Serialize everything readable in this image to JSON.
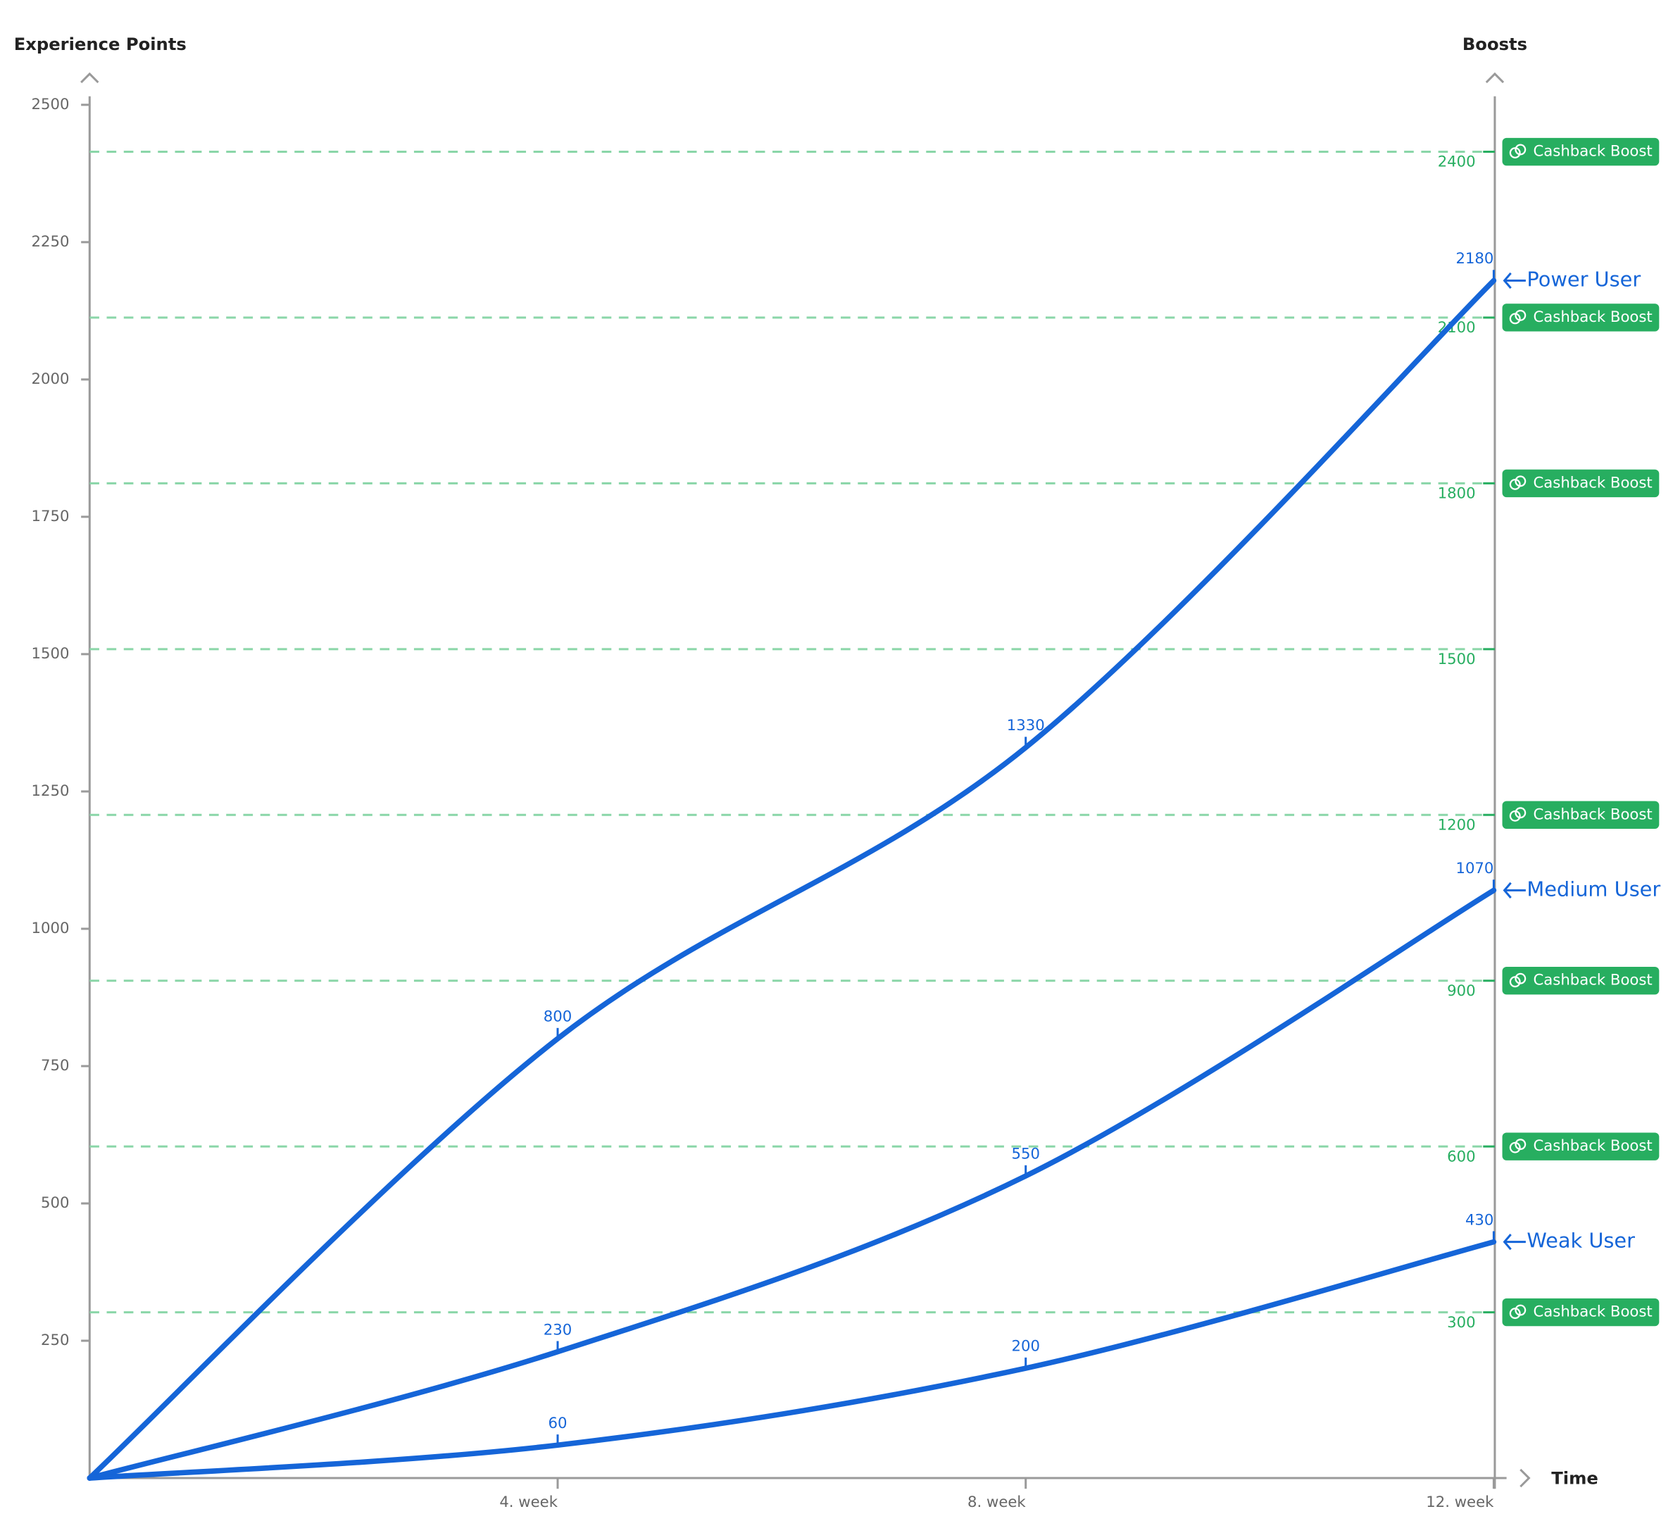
{
  "chart_data": {
    "type": "line",
    "ylabel": "Experience Points",
    "y2label": "Boosts",
    "xlabel": "Time",
    "x": [
      0,
      4,
      8,
      12
    ],
    "xlim": [
      0,
      12
    ],
    "xticks": [
      {
        "value": 4,
        "label": "4. week"
      },
      {
        "value": 8,
        "label": "8. week"
      },
      {
        "value": 12,
        "label": "12. week"
      }
    ],
    "ylim": [
      0,
      2500
    ],
    "yticks": [
      250,
      500,
      750,
      1000,
      1250,
      1500,
      1750,
      2000,
      2250,
      2500
    ],
    "y2lim": [
      0,
      2400
    ],
    "y2ticks": [
      300,
      600,
      900,
      1200,
      1500,
      1800,
      2100,
      2400
    ],
    "grid": true,
    "boosts": [
      {
        "value": 300,
        "label": "Cashback Boost"
      },
      {
        "value": 600,
        "label": "Cashback Boost"
      },
      {
        "value": 900,
        "label": "Cashback Boost"
      },
      {
        "value": 1200,
        "label": "Cashback Boost"
      },
      {
        "value": 1800,
        "label": "Cashback Boost"
      },
      {
        "value": 2100,
        "label": "Cashback Boost"
      },
      {
        "value": 2400,
        "label": "Cashback Boost"
      }
    ],
    "boost_color": "#27ae60",
    "series": [
      {
        "name": "Power User",
        "color": "#1565d8",
        "values": [
          0,
          800,
          1330,
          2180
        ]
      },
      {
        "name": "Medium User",
        "color": "#1565d8",
        "values": [
          0,
          230,
          550,
          1070
        ]
      },
      {
        "name": "Weak User",
        "color": "#1565d8",
        "values": [
          0,
          60,
          200,
          430
        ]
      }
    ]
  }
}
